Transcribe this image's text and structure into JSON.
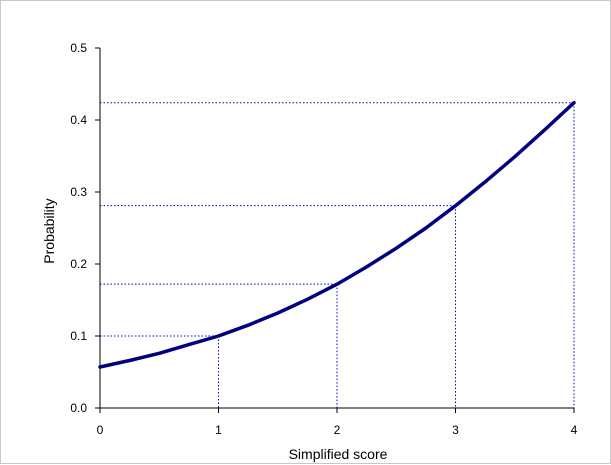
{
  "chart_data": {
    "type": "line",
    "xlabel": "Simplified score",
    "ylabel": "Probability",
    "xlim": [
      0,
      4
    ],
    "ylim": [
      0,
      0.5
    ],
    "x_ticks": [
      0,
      1,
      2,
      3,
      4
    ],
    "x_tick_labels": [
      "0",
      "1",
      "2",
      "3",
      "4"
    ],
    "y_ticks": [
      0,
      0.1,
      0.2,
      0.3,
      0.4,
      0.5
    ],
    "y_tick_labels": [
      "0.0",
      "0.1",
      "0.2",
      "0.3",
      "0.4",
      "0.5"
    ],
    "grid": false,
    "series": [
      {
        "color": "#000080",
        "x": [
          0,
          0.25,
          0.5,
          0.75,
          1,
          1.25,
          1.5,
          1.75,
          2,
          2.25,
          2.5,
          2.75,
          3,
          3.25,
          3.5,
          3.75,
          4
        ],
        "y": [
          0.057,
          0.066,
          0.076,
          0.088,
          0.1,
          0.115,
          0.132,
          0.151,
          0.172,
          0.196,
          0.222,
          0.25,
          0.281,
          0.314,
          0.349,
          0.386,
          0.424
        ]
      }
    ],
    "reference_points": [
      {
        "x": 1,
        "y": 0.1
      },
      {
        "x": 2,
        "y": 0.172
      },
      {
        "x": 3,
        "y": 0.281
      },
      {
        "x": 4,
        "y": 0.424
      }
    ],
    "reference_line_color": "#0000cc"
  }
}
